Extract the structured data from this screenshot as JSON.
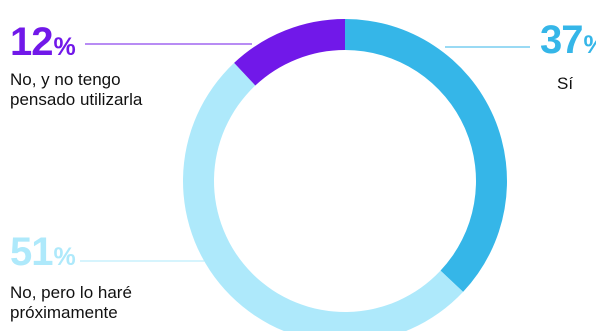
{
  "chart_data": {
    "type": "pie",
    "donut": true,
    "slices": [
      {
        "label": "Sí",
        "value": 37,
        "display": "37",
        "unit": "%",
        "color": "#35b6e8"
      },
      {
        "label": "No, pero lo haré\npróximamente",
        "value": 51,
        "display": "51",
        "unit": "%",
        "color": "#aee9fb"
      },
      {
        "label": "No, y no tengo\npensado utilizarla",
        "value": 12,
        "display": "12",
        "unit": "%",
        "color": "#7118e9"
      }
    ]
  }
}
